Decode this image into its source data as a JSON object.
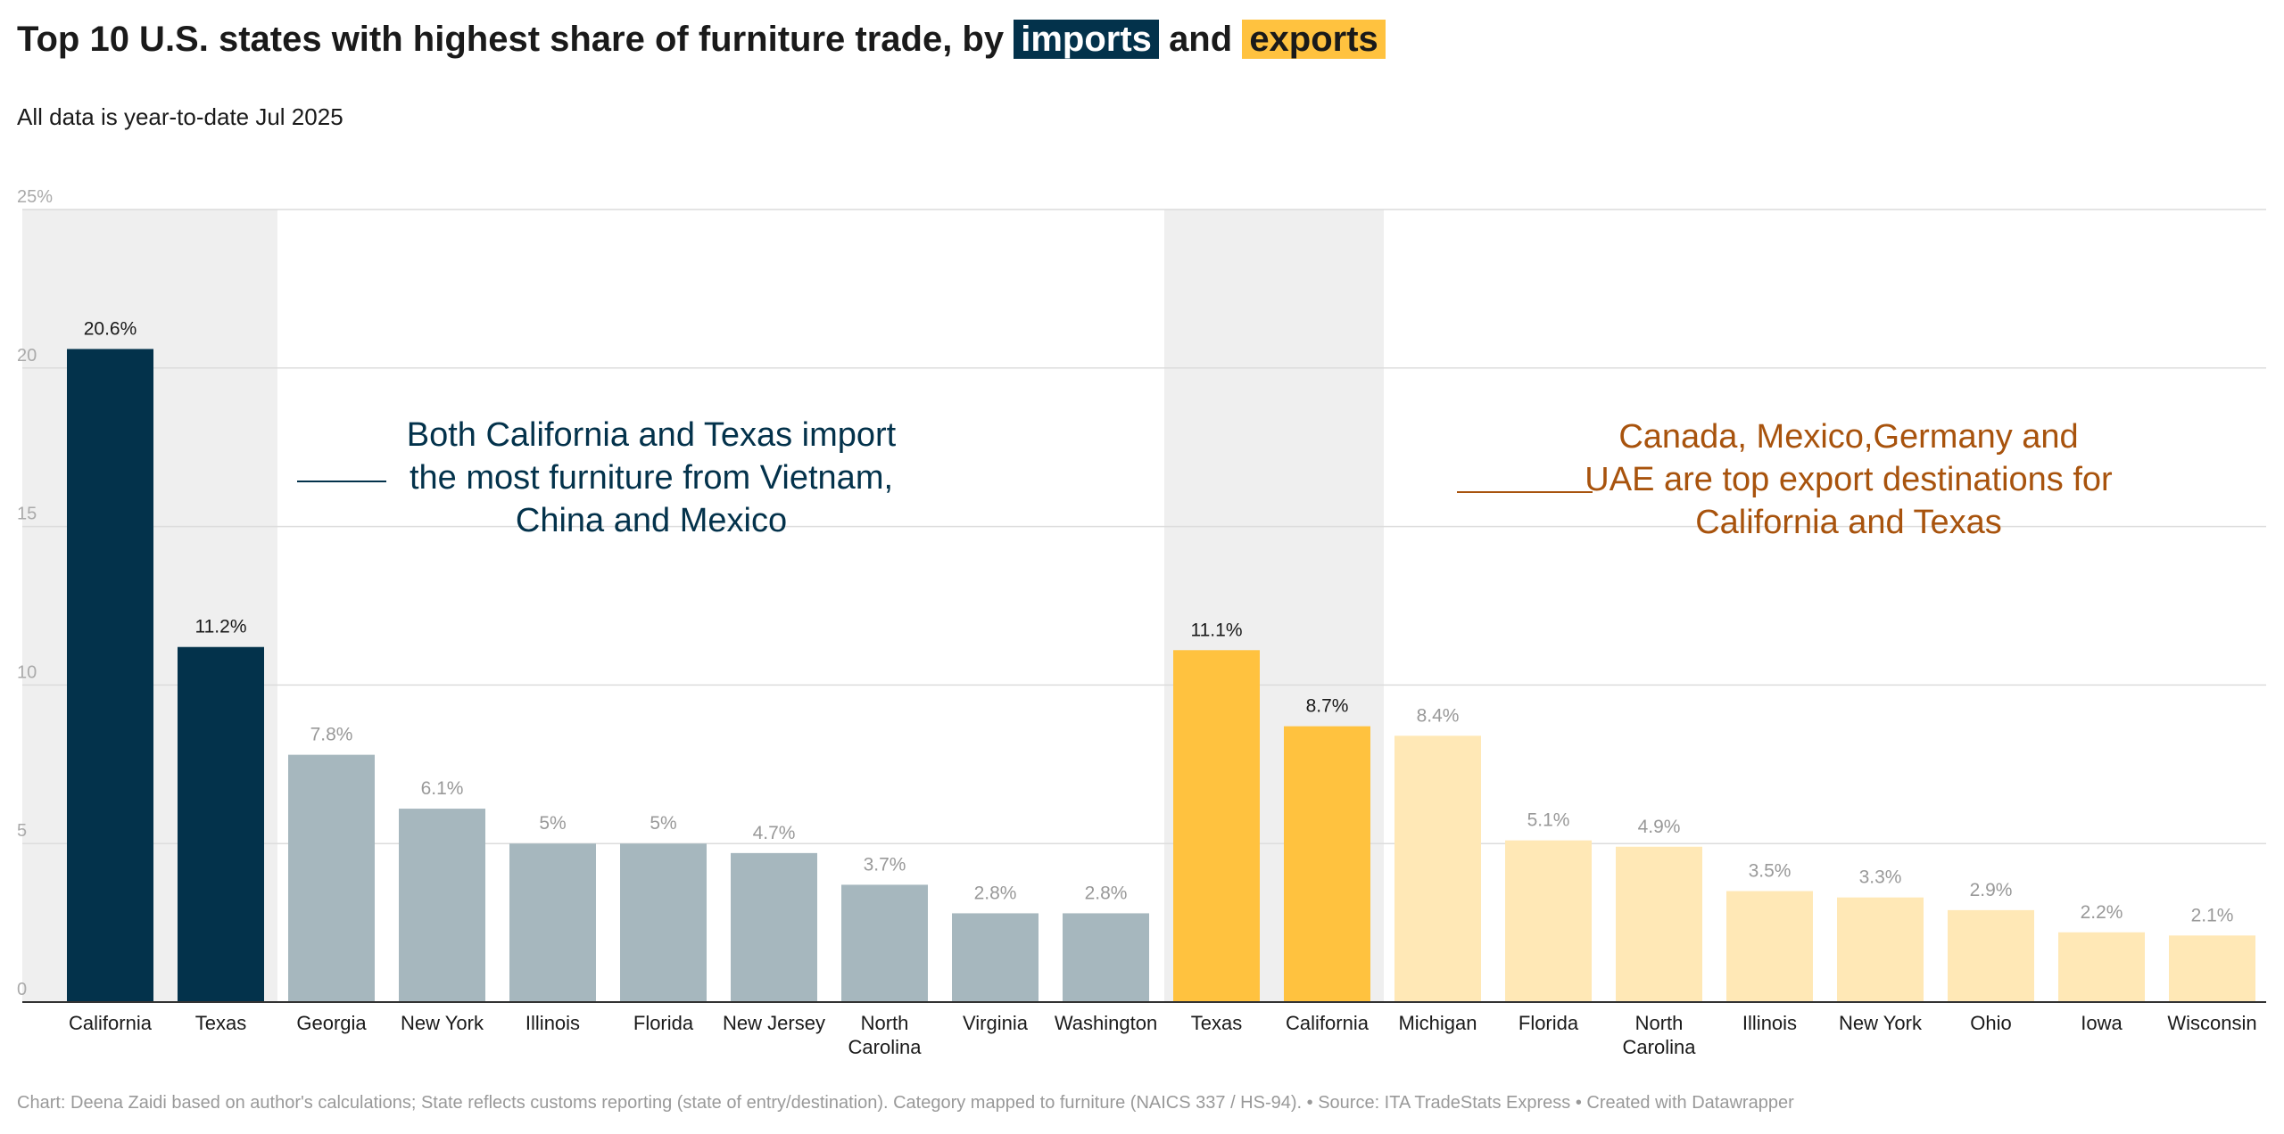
{
  "title": {
    "prefix": "Top 10 U.S. states with highest share of furniture trade, by",
    "imports_word": "imports",
    "and_word": "and",
    "exports_word": "exports"
  },
  "subtitle": "All data is year-to-date Jul 2025",
  "colors": {
    "import_highlight": "#03324b",
    "import_other": "#a6b7be",
    "export_highlight": "#ffc23f",
    "export_other": "#ffe8b6",
    "band": "#efefef",
    "import_annotation": "#03324b",
    "export_annotation": "#a8530d"
  },
  "annotations": {
    "imports": "Both California and Texas import the most furniture from Vietnam, China and Mexico",
    "exports": "Canada, Mexico,Germany and UAE are top export destinations for California and Texas"
  },
  "footer": "Chart: Deena Zaidi based on author's calculations; State reflects customs reporting (state of entry/destination). Category mapped to furniture (NAICS 337 / HS-94).  • Source: ITA TradeStats Express • Created with Datawrapper",
  "chart_data": {
    "type": "bar",
    "title": "Top 10 U.S. states with highest share of furniture trade, by imports and exports",
    "xlabel": "",
    "ylabel": "",
    "ylim": [
      0,
      25
    ],
    "yticks": [
      0,
      5,
      10,
      15,
      20,
      25
    ],
    "ytick_labels": [
      "0",
      "5",
      "10",
      "15",
      "20",
      "25%"
    ],
    "grid": true,
    "series": [
      {
        "name": "imports",
        "categories": [
          "California",
          "Texas",
          "Georgia",
          "New York",
          "Illinois",
          "Florida",
          "New Jersey",
          "North Carolina",
          "Virginia",
          "Washington"
        ],
        "values": [
          20.6,
          11.2,
          7.8,
          6.1,
          5,
          5,
          4.7,
          3.7,
          2.8,
          2.8
        ],
        "labels": [
          "20.6%",
          "11.2%",
          "7.8%",
          "6.1%",
          "5%",
          "5%",
          "4.7%",
          "3.7%",
          "2.8%",
          "2.8%"
        ],
        "highlighted": [
          true,
          true,
          false,
          false,
          false,
          false,
          false,
          false,
          false,
          false
        ]
      },
      {
        "name": "exports",
        "categories": [
          "Texas",
          "California",
          "Michigan",
          "Florida",
          "North Carolina",
          "Illinois",
          "New York",
          "Ohio",
          "Iowa",
          "Wisconsin"
        ],
        "values": [
          11.1,
          8.7,
          8.4,
          5.1,
          4.9,
          3.5,
          3.3,
          2.9,
          2.2,
          2.1
        ],
        "labels": [
          "11.1%",
          "8.7%",
          "8.4%",
          "5.1%",
          "4.9%",
          "3.5%",
          "3.3%",
          "2.9%",
          "2.2%",
          "2.1%"
        ],
        "highlighted": [
          true,
          true,
          false,
          false,
          false,
          false,
          false,
          false,
          false,
          false
        ]
      }
    ]
  }
}
